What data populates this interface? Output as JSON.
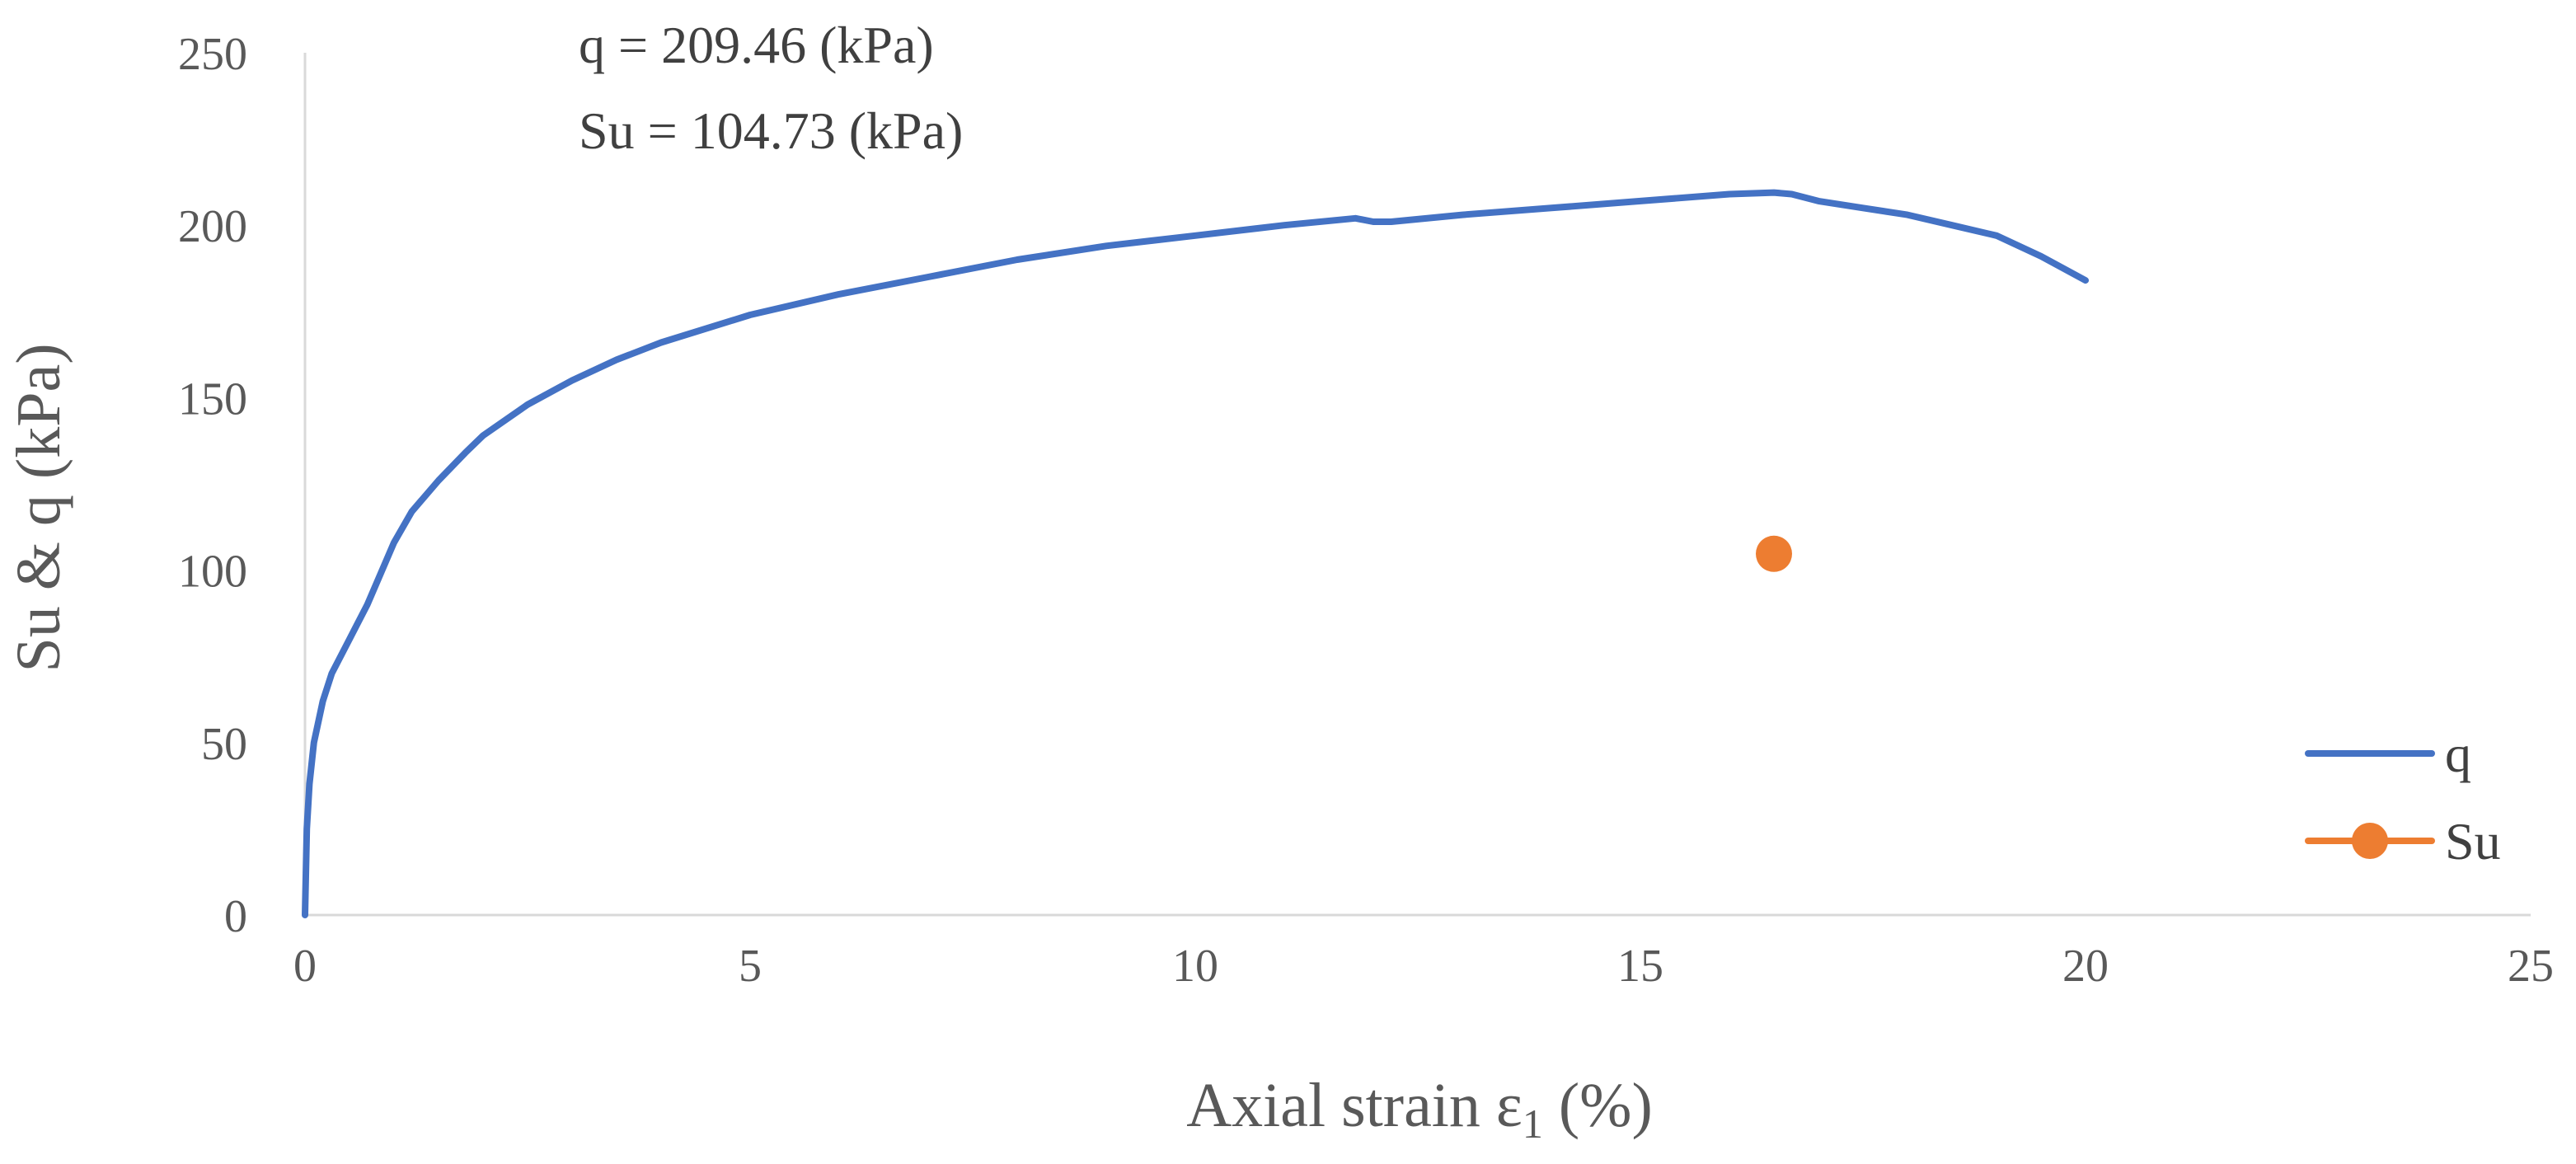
{
  "chart_data": {
    "type": "scatter",
    "xlabel": "Axial strain ε",
    "xlabel_subscript": "1",
    "xlabel_suffix": " (%)",
    "ylabel": "Su & q (kPa)",
    "xlim": [
      0,
      25
    ],
    "ylim": [
      0,
      250
    ],
    "xticks": [
      0,
      5,
      10,
      15,
      20,
      25
    ],
    "yticks": [
      0,
      50,
      100,
      150,
      200,
      250
    ],
    "grid": false,
    "legend_position": "bottom-right",
    "annotations": [
      "q = 209.46 (kPa)",
      "Su = 104.73 (kPa)"
    ],
    "series": [
      {
        "name": "q",
        "style": "line",
        "color": "#4472C4",
        "x": [
          0,
          0.02,
          0.05,
          0.1,
          0.2,
          0.3,
          0.5,
          0.7,
          0.9,
          1.0,
          1.2,
          1.5,
          1.8,
          2.0,
          2.5,
          3.0,
          3.5,
          4.0,
          5.0,
          6.0,
          7.0,
          8.0,
          9.0,
          10.0,
          11.0,
          11.8,
          12.0,
          12.2,
          13.0,
          14.0,
          15.0,
          16.0,
          16.5,
          16.7,
          17.0,
          17.5,
          18.0,
          18.5,
          19.0,
          19.5,
          20.0
        ],
        "y": [
          0,
          25,
          38,
          50,
          62,
          70,
          80,
          90,
          102,
          108,
          117,
          126,
          134,
          139,
          148,
          155,
          161,
          166,
          174,
          180,
          185,
          190,
          194,
          197,
          200,
          202,
          201,
          201,
          203,
          205,
          207,
          209,
          209.46,
          209,
          207,
          205,
          203,
          200,
          197,
          191,
          184
        ]
      },
      {
        "name": "Su",
        "style": "marker",
        "color": "#ED7D31",
        "x": [
          16.5
        ],
        "y": [
          104.73
        ]
      }
    ]
  }
}
